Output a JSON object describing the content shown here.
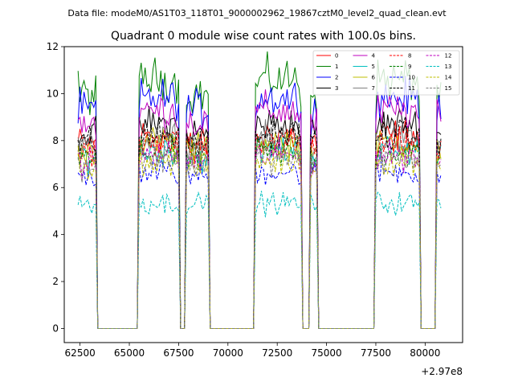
{
  "chart_data": {
    "type": "line",
    "suptitle": "Data file: modeM0/AS1T03_118T01_9000002962_19867cztM0_level2_quad_clean.evt",
    "title": "Quadrant 0 module wise count rates with 100.0s bins.",
    "xlabel": "",
    "ylabel": "",
    "x_offset_label": "+2.97e8",
    "xlim": [
      61700,
      81900
    ],
    "ylim": [
      -0.6,
      12
    ],
    "x_ticks": [
      62500,
      65000,
      67500,
      70000,
      72500,
      75000,
      77500,
      80000
    ],
    "x_tick_labels": [
      "62500",
      "65000",
      "67500",
      "70000",
      "72500",
      "75000",
      "77500",
      "80000"
    ],
    "y_ticks": [
      0,
      2,
      4,
      6,
      8,
      10,
      12
    ],
    "y_tick_labels": [
      "0",
      "2",
      "4",
      "6",
      "8",
      "10",
      "12"
    ],
    "grid": false,
    "legend_position": "top-right",
    "on_intervals": [
      [
        62400,
        63300
      ],
      [
        65500,
        67500
      ],
      [
        67900,
        69000
      ],
      [
        71400,
        73750
      ],
      [
        74200,
        74500
      ],
      [
        77500,
        79750
      ],
      [
        80600,
        80800
      ]
    ],
    "series": [
      {
        "name": "0",
        "color": "#ff0000",
        "dash": "solid",
        "level": 7.9
      },
      {
        "name": "1",
        "color": "#008000",
        "dash": "solid",
        "level": 10.0
      },
      {
        "name": "2",
        "color": "#0000ff",
        "dash": "solid",
        "level": 9.3
      },
      {
        "name": "3",
        "color": "#000000",
        "dash": "solid",
        "level": 8.3
      },
      {
        "name": "4",
        "color": "#bf00bf",
        "dash": "solid",
        "level": 8.8
      },
      {
        "name": "5",
        "color": "#00bfbf",
        "dash": "solid",
        "level": 7.3
      },
      {
        "name": "6",
        "color": "#bfbf00",
        "dash": "solid",
        "level": 7.6
      },
      {
        "name": "7",
        "color": "#808080",
        "dash": "solid",
        "level": 7.7
      },
      {
        "name": "8",
        "color": "#ff0000",
        "dash": "dashed",
        "level": 7.5
      },
      {
        "name": "9",
        "color": "#008000",
        "dash": "dashed",
        "level": 7.2
      },
      {
        "name": "10",
        "color": "#0000ff",
        "dash": "dashed",
        "level": 6.5
      },
      {
        "name": "11",
        "color": "#000000",
        "dash": "dashed",
        "level": 7.9
      },
      {
        "name": "12",
        "color": "#bf00bf",
        "dash": "dashed",
        "level": 7.1
      },
      {
        "name": "13",
        "color": "#00bfbf",
        "dash": "dashed",
        "level": 5.3
      },
      {
        "name": "14",
        "color": "#bfbf00",
        "dash": "dashed",
        "level": 6.9
      },
      {
        "name": "15",
        "color": "#808080",
        "dash": "dashed",
        "level": 7.0
      }
    ]
  }
}
